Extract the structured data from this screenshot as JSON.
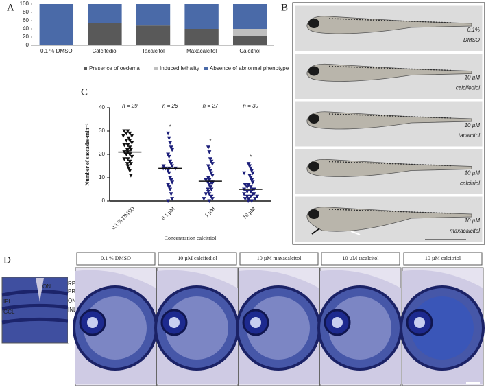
{
  "panel_letters": [
    "A",
    "B",
    "C",
    "D"
  ],
  "chart_data": [
    {
      "type": "stacked-bar",
      "categories": [
        "0.1 % DMSO",
        "Calcifediol",
        "Tacalcitol",
        "Maxacalcitol",
        "Calcitriol"
      ],
      "series": [
        {
          "name": "Presence of oedema",
          "color": "#595959",
          "values": [
            0,
            55,
            48,
            40,
            22
          ]
        },
        {
          "name": "Induced lethality",
          "color": "#bfbfbf",
          "values": [
            0,
            0,
            0,
            0,
            18
          ]
        },
        {
          "name": "Absence of abnormal phenotype",
          "color": "#4a6aa8",
          "values": [
            100,
            45,
            52,
            60,
            60
          ]
        }
      ],
      "ylim": [
        0,
        100
      ],
      "yticks": [
        0,
        20,
        40,
        60,
        80,
        100
      ]
    },
    {
      "type": "strip",
      "ylabel": "Number of saccades·min⁻¹",
      "xlabel": "Concentration calcitriol",
      "categories": [
        "0.1 % DMSO",
        "0.1 µM",
        "1 µM",
        "10 µM"
      ],
      "n_labels": [
        "n = 29",
        "n = 26",
        "n = 27",
        "n = 30"
      ],
      "significance": [
        null,
        "*",
        "*",
        "*"
      ],
      "medians": [
        21,
        14,
        8.5,
        5
      ],
      "series": [
        {
          "color": "#111111",
          "values": [
            30,
            30,
            29,
            29,
            28,
            28,
            27,
            26,
            26,
            25,
            24,
            24,
            23,
            22,
            22,
            21,
            21,
            20,
            20,
            19,
            18,
            18,
            17,
            16,
            16,
            15,
            14,
            13,
            11
          ]
        },
        {
          "color": "#1c1f7a",
          "values": [
            29,
            27,
            25,
            23,
            22,
            20,
            19,
            17,
            16,
            15,
            15,
            14,
            14,
            14,
            14,
            13,
            12,
            10,
            9,
            8,
            7,
            6,
            5,
            3,
            1,
            0
          ]
        },
        {
          "color": "#1c1f7a",
          "values": [
            23,
            21,
            18,
            17,
            16,
            15,
            14,
            13,
            12,
            11,
            10,
            9,
            9,
            8,
            8,
            8,
            7,
            6,
            5,
            5,
            4,
            3,
            3,
            2,
            1,
            1,
            0
          ]
        },
        {
          "color": "#1c1f7a",
          "values": [
            16,
            15,
            14,
            13,
            12,
            12,
            11,
            10,
            9,
            8,
            7,
            7,
            6,
            6,
            5,
            5,
            5,
            4,
            4,
            3,
            3,
            3,
            2,
            2,
            2,
            1,
            1,
            1,
            0,
            0
          ]
        }
      ],
      "ylim": [
        0,
        40
      ],
      "yticks": [
        0,
        10,
        20,
        30,
        40
      ]
    }
  ],
  "larvae": [
    [
      "0.1%",
      "DMSO"
    ],
    [
      "10 µM",
      "calcifediol"
    ],
    [
      "10 µM",
      "tacalcitol"
    ],
    [
      "10 µM",
      "calcitriol"
    ],
    [
      "10 µM",
      "maxacalcitol"
    ]
  ],
  "retina_headers": [
    "0.1 % DMSO",
    "10 µM  calcifediol",
    "10 µM maxacalcitol",
    "10 µM tacalcitol",
    "10 µM calcitriol"
  ],
  "retina_layers": [
    "ON",
    "RPE",
    "PRL",
    "ONL",
    "INL",
    "IPL",
    "GCL"
  ]
}
